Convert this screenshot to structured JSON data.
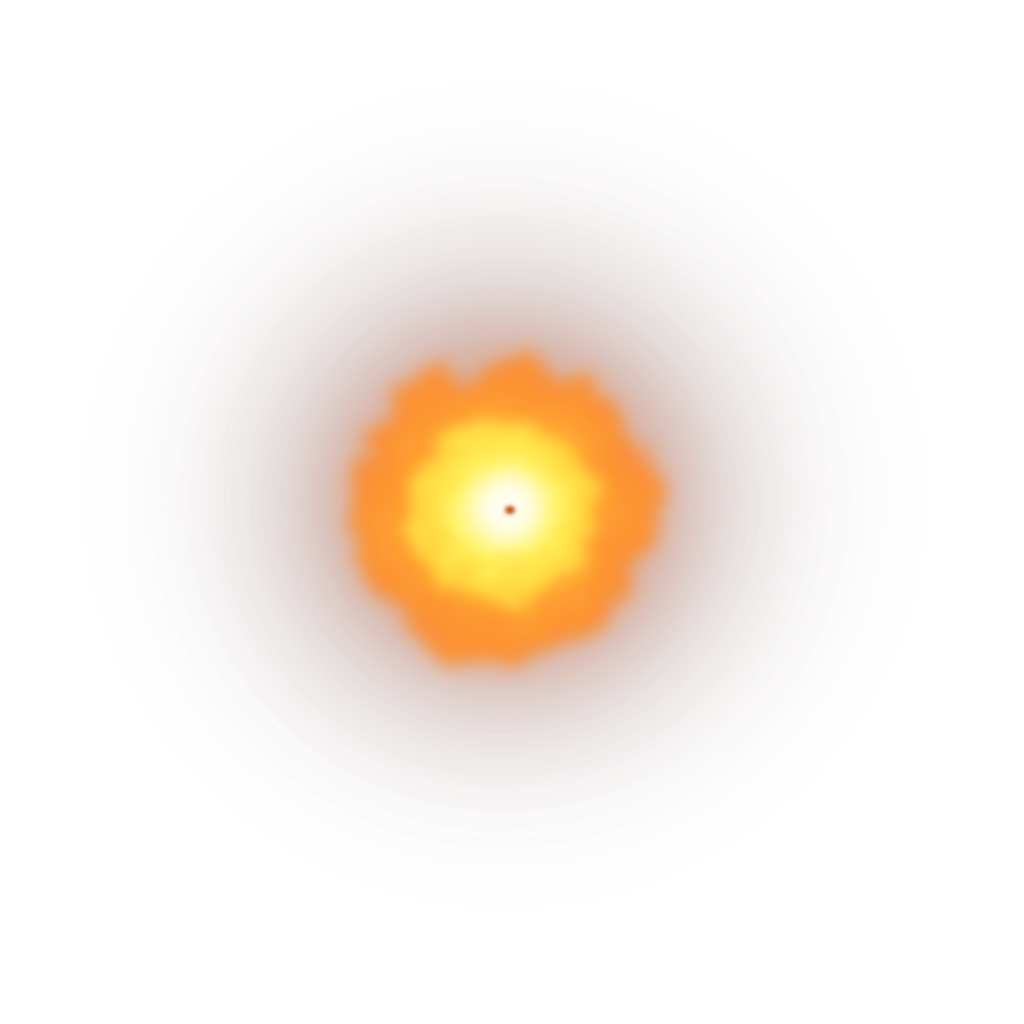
{
  "scene": {
    "subject": "fireball-explosion",
    "colors": {
      "background": "#ffffff",
      "smoke": "#8c6a66",
      "outer_fire": "#ff8a2a",
      "mid_fire": "#ffb836",
      "inner_fire": "#fff25a",
      "core": "#fffde8",
      "ember": "#c24a00"
    }
  }
}
